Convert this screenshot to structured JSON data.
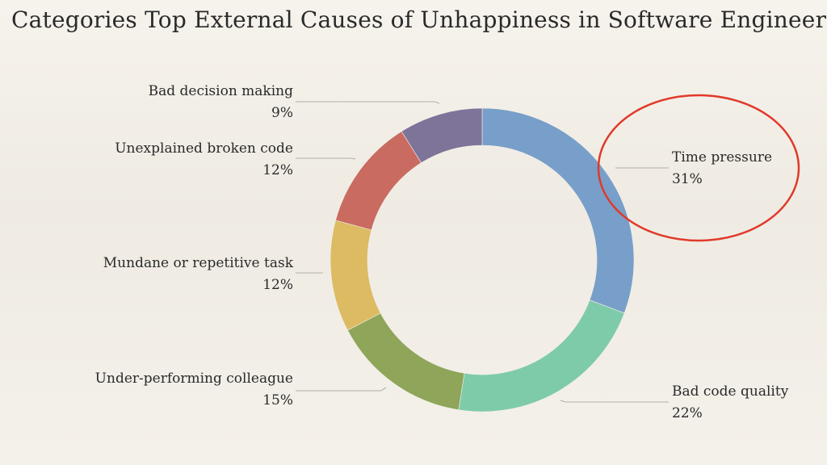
{
  "title": "Categories Top External Causes of Unhappiness in Software Engineers",
  "chart_data": {
    "type": "pie",
    "title": "Categories Top External Causes of Unhappiness in Software Engineers",
    "style": "donut",
    "slices": [
      {
        "label": "Time pressure",
        "value": 31,
        "display": "31%",
        "color": "#789fc9"
      },
      {
        "label": "Bad code quality",
        "value": 22,
        "display": "22%",
        "color": "#7ecbaa"
      },
      {
        "label": "Under-performing colleague",
        "value": 15,
        "display": "15%",
        "color": "#8ea55a"
      },
      {
        "label": "Mundane or repetitive task",
        "value": 12,
        "display": "12%",
        "color": "#dcbb63"
      },
      {
        "label": "Unexplained broken code",
        "value": 12,
        "display": "12%",
        "color": "#c96b60"
      },
      {
        "label": "Bad decision making",
        "value": 9,
        "display": "9%",
        "color": "#7e7399"
      }
    ],
    "highlight": {
      "label": "Time pressure",
      "color": "#e03a2a"
    }
  }
}
